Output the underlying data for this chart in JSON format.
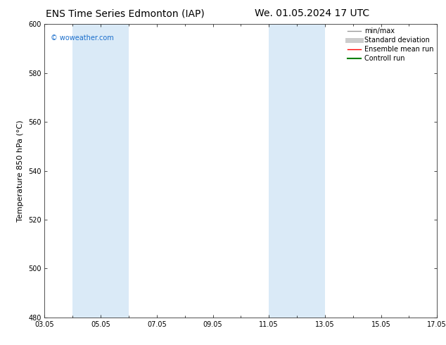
{
  "title_left": "ENS Time Series Edmonton (IAP)",
  "title_right": "We. 01.05.2024 17 UTC",
  "ylabel": "Temperature 850 hPa (°C)",
  "ylim": [
    480,
    600
  ],
  "yticks": [
    480,
    500,
    520,
    540,
    560,
    580,
    600
  ],
  "xtick_labels": [
    "03.05",
    "05.05",
    "07.05",
    "09.05",
    "11.05",
    "13.05",
    "15.05",
    "17.05"
  ],
  "xtick_positions": [
    0,
    2,
    4,
    6,
    8,
    10,
    12,
    14
  ],
  "xlim": [
    0,
    14
  ],
  "shaded_bands": [
    {
      "x_start": 1.0,
      "x_end": 3.0
    },
    {
      "x_start": 8.0,
      "x_end": 10.0
    }
  ],
  "watermark": "© woweather.com",
  "watermark_color": "#1a6ecc",
  "legend_items": [
    {
      "label": "min/max",
      "color": "#999999",
      "lw": 1.0
    },
    {
      "label": "Standard deviation",
      "color": "#cccccc",
      "lw": 5
    },
    {
      "label": "Ensemble mean run",
      "color": "#ff0000",
      "lw": 1.0
    },
    {
      "label": "Controll run",
      "color": "#008000",
      "lw": 1.5
    }
  ],
  "bg_color": "#ffffff",
  "plot_bg_color": "#ffffff",
  "shade_color": "#daeaf7",
  "title_fontsize": 10,
  "tick_fontsize": 7,
  "ylabel_fontsize": 8,
  "watermark_fontsize": 7,
  "legend_fontsize": 7
}
